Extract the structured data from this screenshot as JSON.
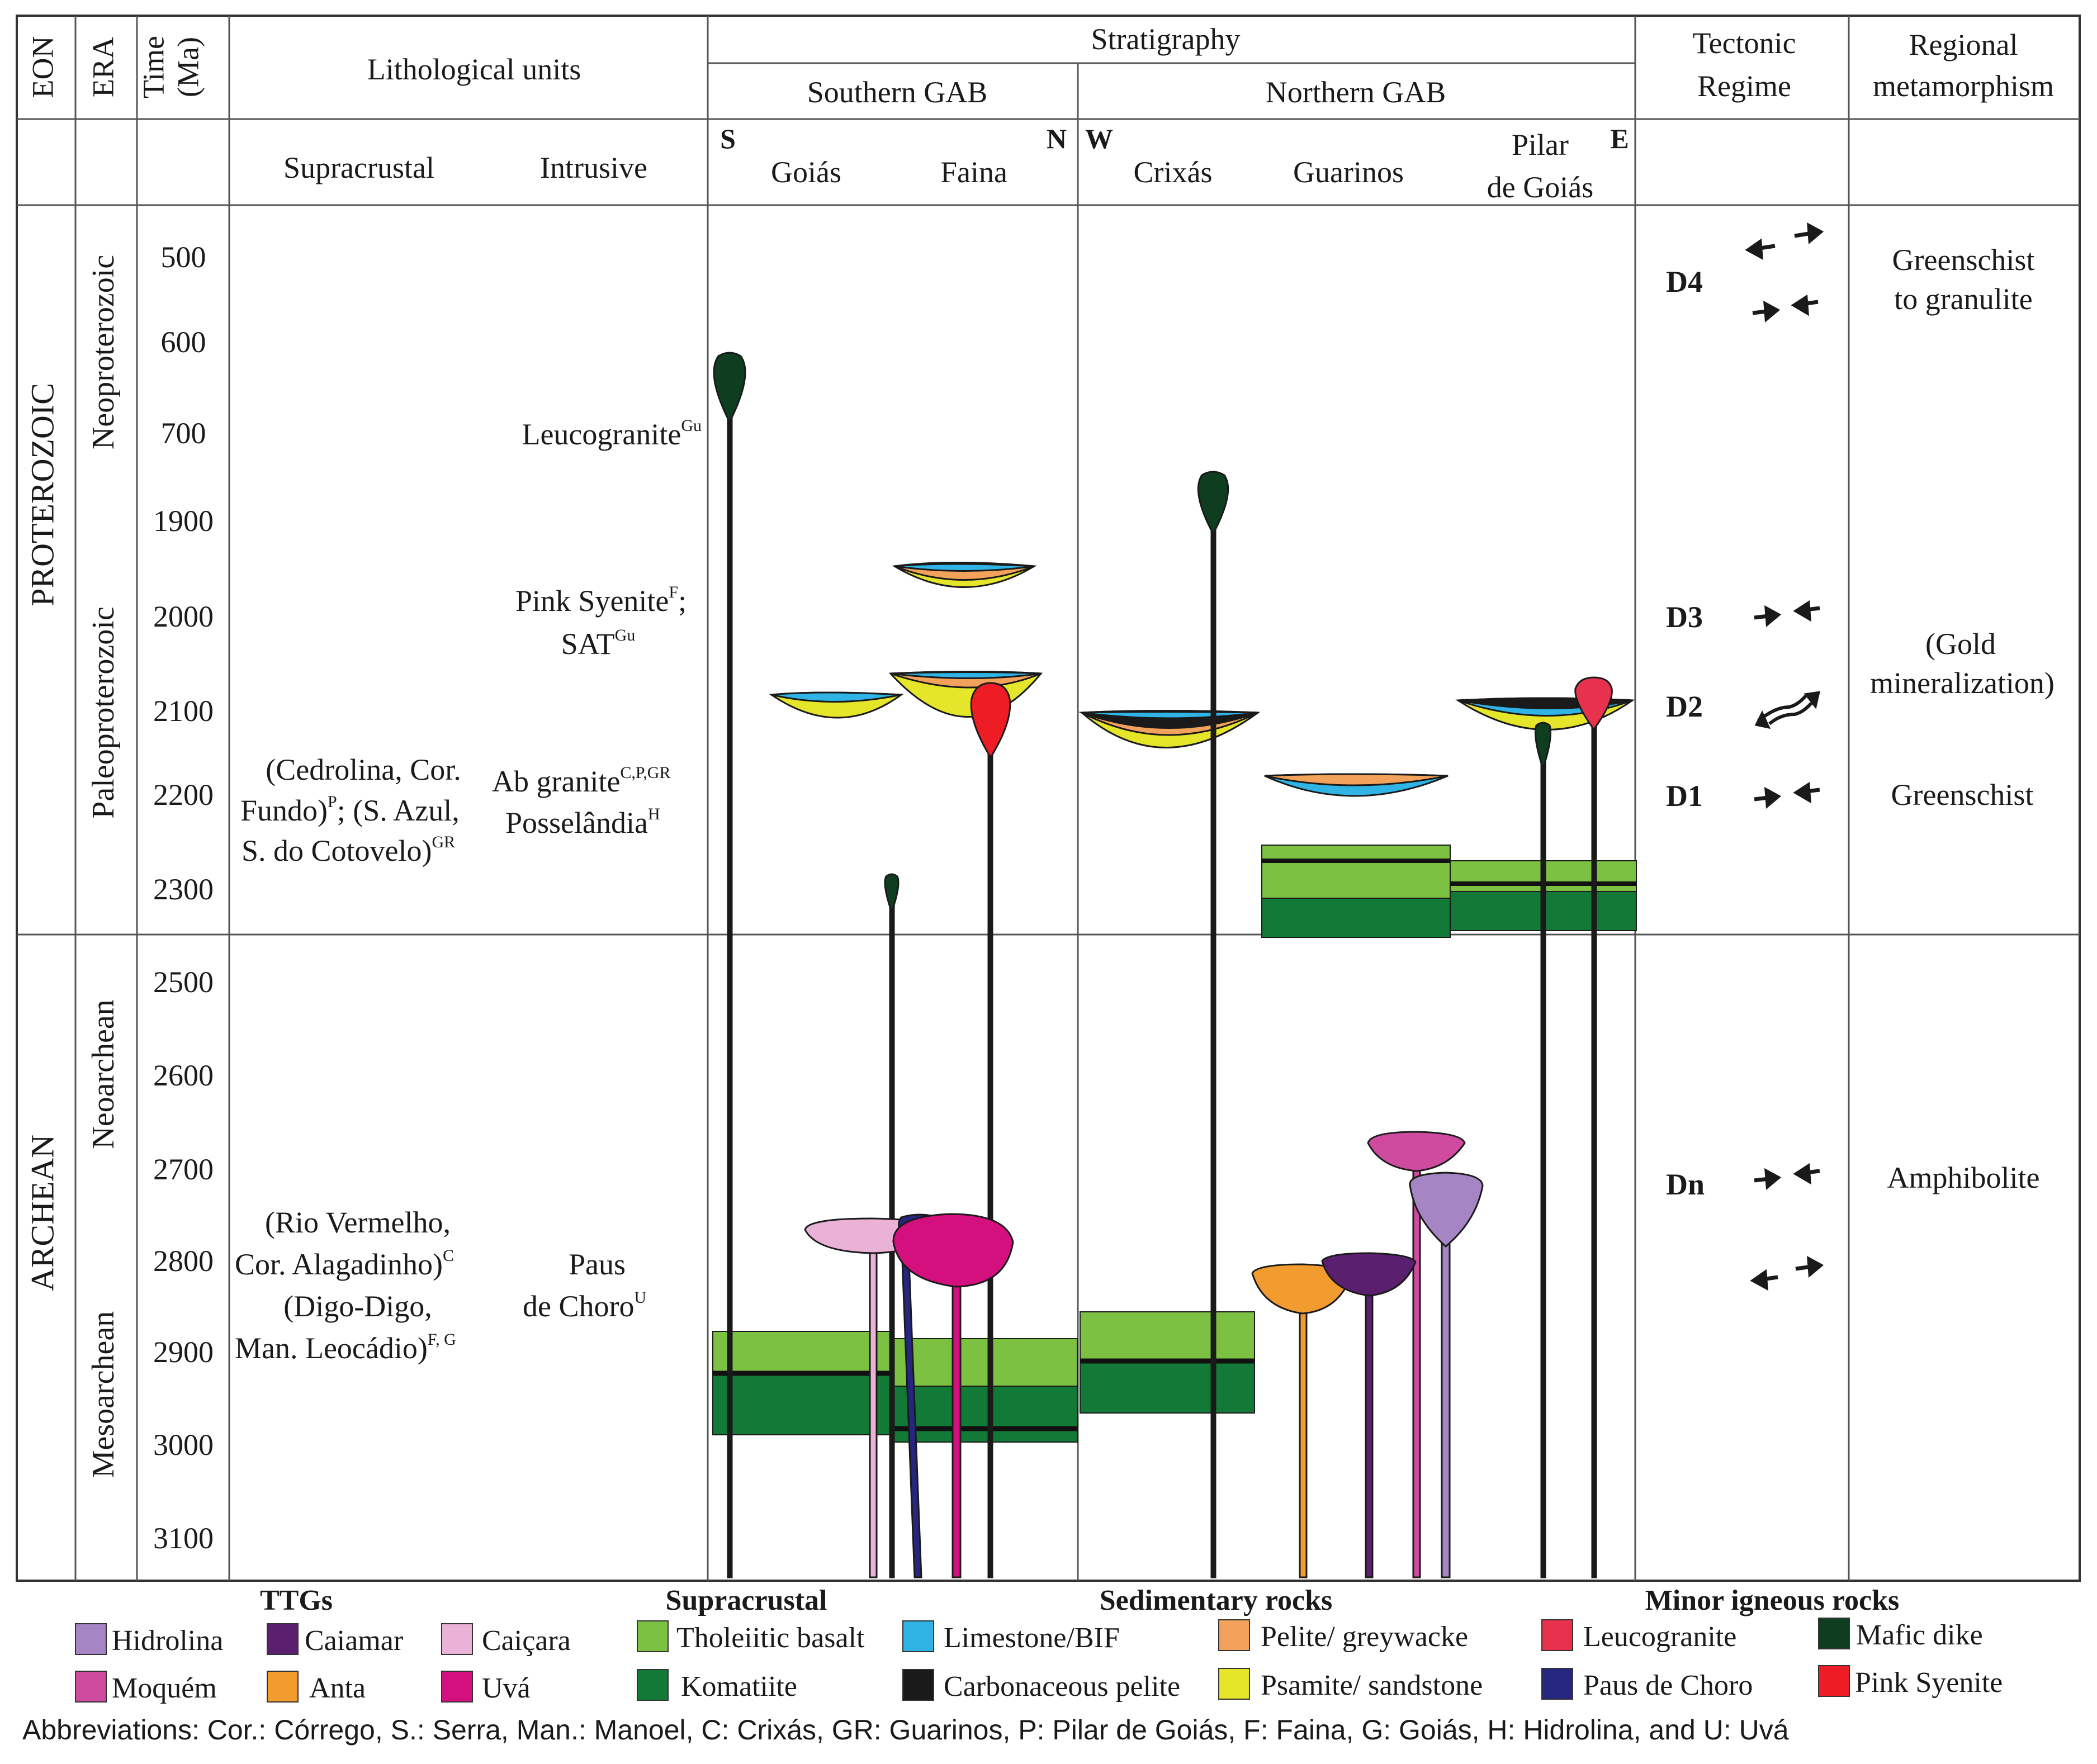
{
  "header": {
    "eon": "EON",
    "era": "ERA",
    "time_line1": "Time",
    "time_line2": "(Ma)",
    "lithological_units": "Lithological units",
    "supracrustal": "Supracrustal",
    "intrusive": "Intrusive",
    "stratigraphy": "Stratigraphy",
    "southern_gab": "Southern GAB",
    "northern_gab": "Northern GAB",
    "tectonic_line1": "Tectonic",
    "tectonic_line2": "Regime",
    "metamorphism_line1": "Regional",
    "metamorphism_line2": "metamorphism",
    "col_goias": "Goiás",
    "col_faina": "Faina",
    "col_crixas": "Crixás",
    "col_guarinos": "Guarinos",
    "col_pilar_line1": "Pilar",
    "col_pilar_line2": "de Goiás",
    "dir_s": "S",
    "dir_n": "N",
    "dir_w": "W",
    "dir_e": "E"
  },
  "eons": [
    "PROTEROZOIC",
    "ARCHEAN"
  ],
  "eras": [
    "Neoproterozoic",
    "Paleoproterozoic",
    "Neoarchean",
    "Mesoarchean"
  ],
  "time_ticks": [
    "500",
    "600",
    "700",
    "1900",
    "2000",
    "2100",
    "2200",
    "2300",
    "2500",
    "2600",
    "2700",
    "2800",
    "2900",
    "3000",
    "3100"
  ],
  "lithology": {
    "leucogranite": "Leucogranite",
    "leucogranite_sup": "Gu",
    "pink_syenite": "Pink Syenite",
    "pink_syenite_sup": "F",
    "pink_syenite_sep": ";",
    "sat": "SAT",
    "sat_sup": "Gu",
    "paleo_supra_1": "(Cedrolina, Cor.",
    "paleo_supra_2": "Fundo)",
    "paleo_supra_2_sup": "P",
    "paleo_supra_2b": "; (S. Azul,",
    "paleo_supra_3": "S. do Cotovelo)",
    "paleo_supra_3_sup": "GR",
    "ab_granite": "Ab granite",
    "ab_granite_sup": "C,P,GR",
    "posselandia": "Posselândia",
    "posselandia_sup": "H",
    "arch_supra_1": "(Rio Vermelho,",
    "arch_supra_2": "Cor. Alagadinho)",
    "arch_supra_2_sup": "C",
    "arch_supra_3": "(Digo-Digo,",
    "arch_supra_4": "Man. Leocádio)",
    "arch_supra_4_sup": "F, G",
    "paus_1": "Paus",
    "paus_2": "de Choro",
    "paus_2_sup": "U"
  },
  "tectonic": {
    "d4": "D4",
    "d3": "D3",
    "d2": "D2",
    "d1": "D1",
    "dn": "Dn"
  },
  "metamorphism": {
    "greenschist_to_1": "Greenschist",
    "greenschist_to_2": "to granulite",
    "gold_1": "(Gold",
    "gold_2": "mineralization)",
    "greenschist": "Greenschist",
    "amphibolite": "Amphibolite"
  },
  "legend": {
    "groups": [
      "TTGs",
      "Supracrustal",
      "Sedimentary rocks",
      "Minor igneous rocks"
    ],
    "items": [
      {
        "label": "Hidrolina",
        "color": "#a685c4"
      },
      {
        "label": "Moquém",
        "color": "#cf4ba0"
      },
      {
        "label": "Caiamar",
        "color": "#5a1f6e"
      },
      {
        "label": "Anta",
        "color": "#f29b2e"
      },
      {
        "label": "Caiçara",
        "color": "#eab2d6"
      },
      {
        "label": "Uvá",
        "color": "#d4107e"
      },
      {
        "label": "Tholeiitic basalt",
        "color": "#7cc142"
      },
      {
        "label": "Komatiite",
        "color": "#127a36"
      },
      {
        "label": "Limestone/BIF",
        "color": "#2fb4e5"
      },
      {
        "label": "Carbonaceous pelite",
        "color": "#1a1a1a"
      },
      {
        "label": "Pelite/ greywacke",
        "color": "#f2a25a"
      },
      {
        "label": "Psamite/ sandstone",
        "color": "#e5e52a"
      },
      {
        "label": "Leucogranite",
        "color": "#e8324d"
      },
      {
        "label": "Paus de Choro",
        "color": "#262680"
      },
      {
        "label": "Mafic dike",
        "color": "#0f3d1f"
      },
      {
        "label": "Pink Syenite",
        "color": "#ee1c25"
      }
    ]
  },
  "abbreviations": "Abbreviations: Cor.: Córrego,  S.: Serra, Man.: Manoel, C: Crixás, GR: Guarinos, P: Pilar de Goiás, F: Faina, G: Goiás, H: Hidrolina, and U: Uvá"
}
